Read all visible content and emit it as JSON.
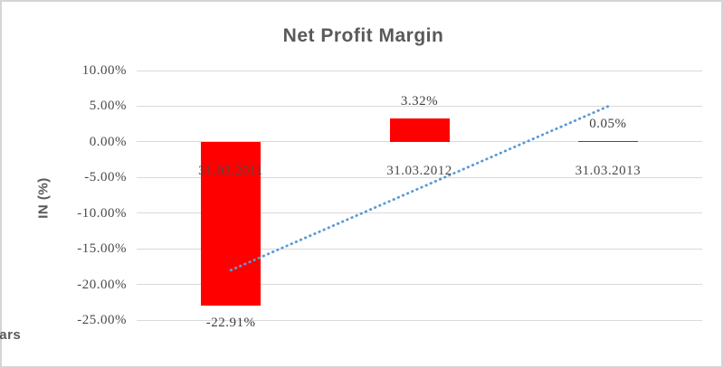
{
  "chart_data": {
    "type": "bar",
    "title": "Net Profit Margin",
    "xlabel": "Years",
    "ylabel": "IN (%)",
    "categories": [
      "31.03.2011",
      "31.03.2012",
      "31.03.2013"
    ],
    "values": [
      -22.91,
      3.32,
      0.05
    ],
    "data_labels": [
      "-22.91%",
      "3.32%",
      "0.05%"
    ],
    "y_ticks": [
      10,
      5,
      0,
      -5,
      -10,
      -15,
      -20,
      -25
    ],
    "y_tick_labels": [
      "10.00%",
      "5.00%",
      "0.00%",
      "-5.00%",
      "-10.00%",
      "-15.00%",
      "-20.00%",
      "-25.00%"
    ],
    "ylim": [
      -25,
      10
    ],
    "grid": true,
    "legend": false,
    "bar_color": "#FF0000",
    "trendline": {
      "type": "linear",
      "style": "dotted",
      "color": "#5B9BD5",
      "start_value": -18.0,
      "end_value": 4.97
    }
  },
  "colors": {
    "title_text": "#595959",
    "tick_text": "#4A4A4A",
    "data_label_text": "#3F3F3F",
    "gridline": "#D9D9D9",
    "frame_border": "#D5D5D8",
    "background": "#FFFFFF"
  }
}
